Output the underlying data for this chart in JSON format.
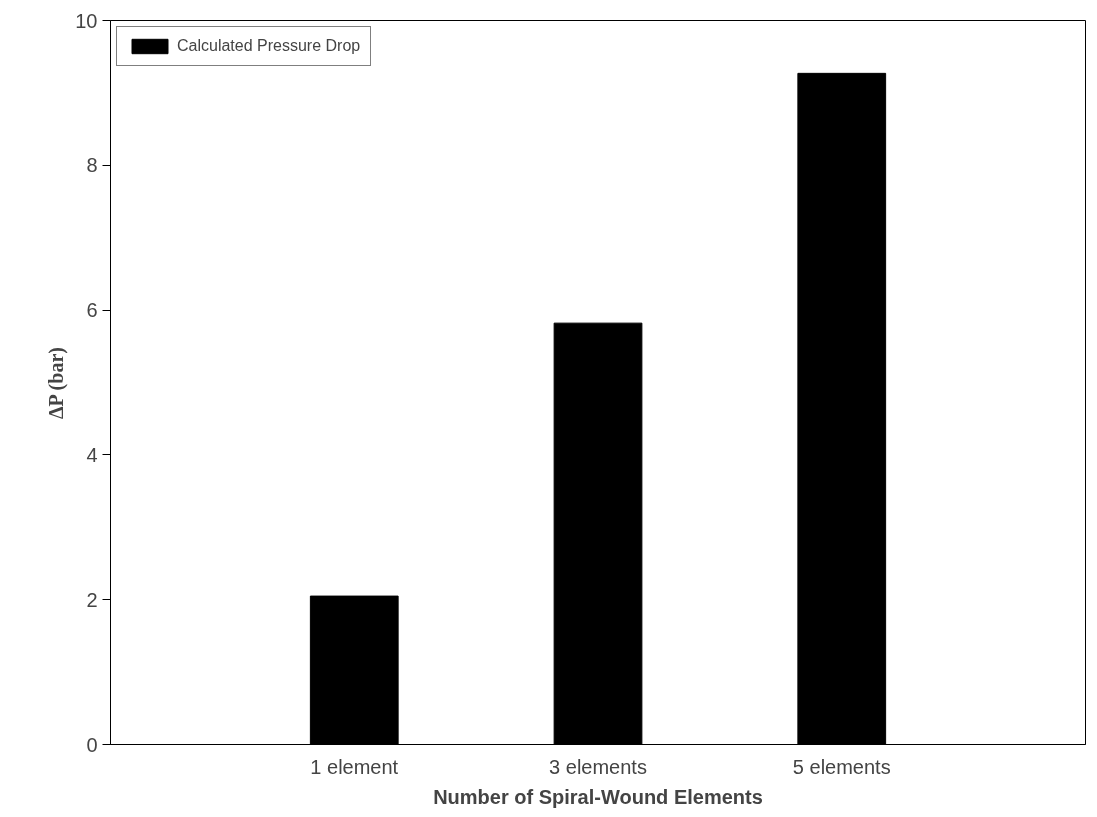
{
  "chart_data": {
    "type": "bar",
    "xlabel": "Number of Spiral-Wound Elements",
    "ylabel": "ΔP (bar)",
    "categories": [
      "1 element",
      "3 elements",
      "5 elements"
    ],
    "series": [
      {
        "name": "Calculated Pressure Drop",
        "color": "#000000",
        "values": [
          2.05,
          5.82,
          9.27
        ]
      }
    ],
    "ylim": [
      0,
      10
    ],
    "yticks": [
      0,
      2,
      4,
      6,
      8,
      10
    ],
    "grid": false,
    "legend": "top left"
  }
}
